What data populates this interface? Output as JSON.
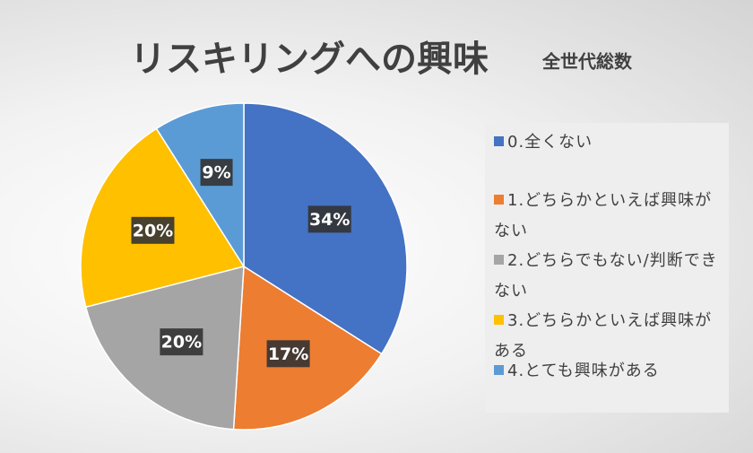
{
  "chart_data": {
    "type": "pie",
    "title": "リスキリングへの興味",
    "subtitle": "全世代総数",
    "categories": [
      "0.全くない",
      "1.どちらかといえば興味がない",
      "2.どちらでもない/判断できない",
      "3.どちらかといえば興味がある",
      "4.とても興味がある"
    ],
    "values": [
      34,
      17,
      20,
      20,
      9
    ],
    "value_labels": [
      "34%",
      "17%",
      "20%",
      "20%",
      "9%"
    ],
    "colors": [
      "#4472c4",
      "#ed7d31",
      "#a5a5a5",
      "#ffc000",
      "#5b9bd5"
    ],
    "legend": "right"
  }
}
